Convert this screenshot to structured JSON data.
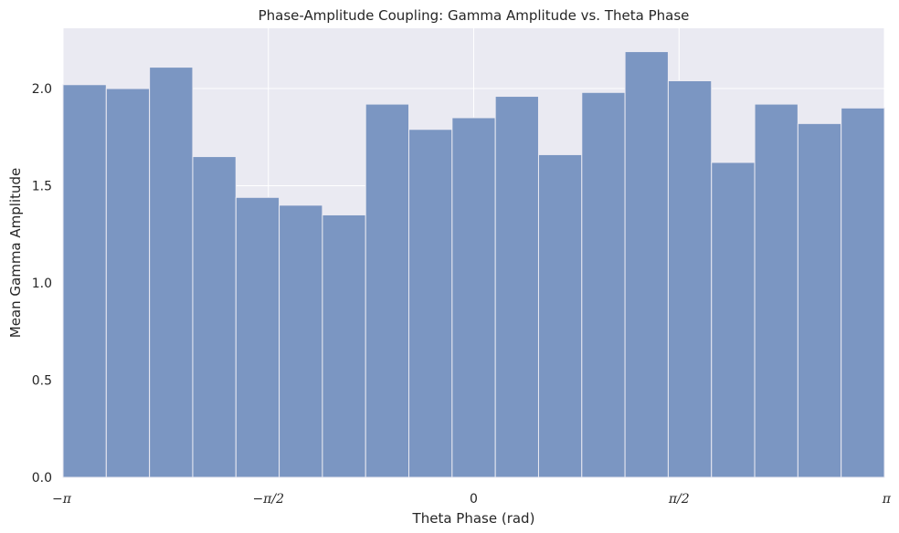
{
  "chart_data": {
    "type": "bar",
    "title": "Phase-Amplitude Coupling: Gamma Amplitude vs. Theta Phase",
    "xlabel": "Theta Phase (rad)",
    "ylabel": "Mean Gamma Amplitude",
    "xlim": [
      -3.14159,
      3.14159
    ],
    "ylim": [
      0,
      2.31
    ],
    "bin_count": 19,
    "values": [
      2.02,
      2.0,
      2.11,
      1.65,
      1.44,
      1.4,
      1.35,
      1.92,
      1.79,
      1.85,
      1.96,
      1.66,
      1.98,
      2.19,
      2.04,
      1.62,
      1.92,
      1.82,
      1.9
    ],
    "xticks": [
      {
        "value": -3.14159,
        "label": "−π"
      },
      {
        "value": -1.5708,
        "label": "−π/2"
      },
      {
        "value": 0,
        "label": "0"
      },
      {
        "value": 1.5708,
        "label": "π/2"
      },
      {
        "value": 3.14159,
        "label": "π"
      }
    ],
    "yticks": [
      {
        "value": 0,
        "label": "0.0"
      },
      {
        "value": 0.5,
        "label": "0.5"
      },
      {
        "value": 1.0,
        "label": "1.0"
      },
      {
        "value": 1.5,
        "label": "1.5"
      },
      {
        "value": 2.0,
        "label": "2.0"
      }
    ],
    "grid": true,
    "colors": {
      "bar": "#7b96c2",
      "bar_edge": "#eaeaf2",
      "background": "#eaeaf2",
      "grid": "#ffffff"
    }
  }
}
